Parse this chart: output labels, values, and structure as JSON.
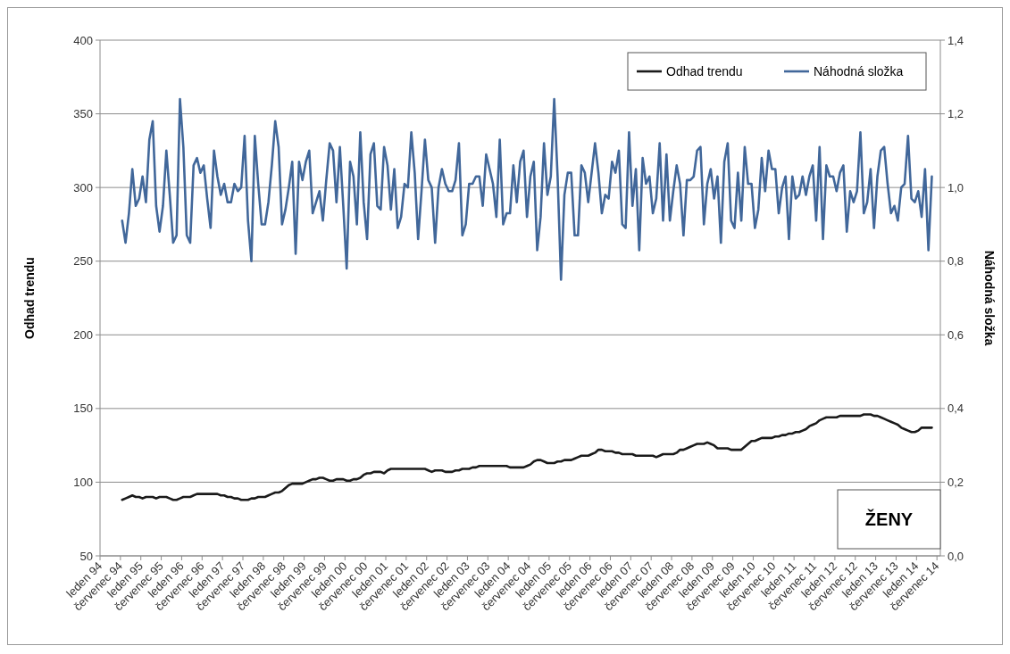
{
  "chart_data": {
    "type": "line",
    "xlabel": null,
    "ylabel": "Odhad trendu",
    "y2label": "Náhodná složka",
    "categories": [
      "leden 94",
      null,
      null,
      null,
      null,
      null,
      "červenec 94",
      null,
      null,
      null,
      null,
      null,
      "leden 95",
      null,
      null,
      null,
      null,
      null,
      "červenec 95",
      null,
      null,
      null,
      null,
      null,
      "leden 96",
      null,
      null,
      null,
      null,
      null,
      "červenec 96",
      null,
      null,
      null,
      null,
      null,
      "leden 97",
      null,
      null,
      null,
      null,
      null,
      "červenec 97",
      null,
      null,
      null,
      null,
      null,
      "leden 98",
      null,
      null,
      null,
      null,
      null,
      "červenec 98",
      null,
      null,
      null,
      null,
      null,
      "leden 99",
      null,
      null,
      null,
      null,
      null,
      "červenec 99",
      null,
      null,
      null,
      null,
      null,
      "leden 00",
      null,
      null,
      null,
      null,
      null,
      "červenec 00",
      null,
      null,
      null,
      null,
      null,
      "leden 01",
      null,
      null,
      null,
      null,
      null,
      "červenec 01",
      null,
      null,
      null,
      null,
      null,
      "leden 02",
      null,
      null,
      null,
      null,
      null,
      "červenec 02",
      null,
      null,
      null,
      null,
      null,
      "leden 03",
      null,
      null,
      null,
      null,
      null,
      "červenec 03",
      null,
      null,
      null,
      null,
      null,
      "leden 04",
      null,
      null,
      null,
      null,
      null,
      "červenec 04",
      null,
      null,
      null,
      null,
      null,
      "leden 05",
      null,
      null,
      null,
      null,
      null,
      "červenec 05",
      null,
      null,
      null,
      null,
      null,
      "leden 06",
      null,
      null,
      null,
      null,
      null,
      "červenec 06",
      null,
      null,
      null,
      null,
      null,
      "leden 07",
      null,
      null,
      null,
      null,
      null,
      "červenec 07",
      null,
      null,
      null,
      null,
      null,
      "leden 08",
      null,
      null,
      null,
      null,
      null,
      "červenec 08",
      null,
      null,
      null,
      null,
      null,
      "leden 09",
      null,
      null,
      null,
      null,
      null,
      "červenec 09",
      null,
      null,
      null,
      null,
      null,
      "leden 10",
      null,
      null,
      null,
      null,
      null,
      "červenec 10",
      null,
      null,
      null,
      null,
      null,
      "leden 11",
      null,
      null,
      null,
      null,
      null,
      "červenec 11",
      null,
      null,
      null,
      null,
      null,
      "leden 12",
      null,
      null,
      null,
      null,
      null,
      "červenec 12",
      null,
      null,
      null,
      null,
      null,
      "leden 13",
      null,
      null,
      null,
      null,
      null,
      "červenec 13",
      null,
      null,
      null,
      null,
      null,
      "leden 14",
      null,
      null,
      null,
      null,
      null,
      "červenec 14"
    ],
    "series": [
      {
        "name": "Odhad trendu",
        "color": "#1a1a1a",
        "values": [
          null,
          null,
          null,
          null,
          null,
          null,
          88,
          89,
          90,
          91,
          90,
          90,
          89,
          90,
          90,
          90,
          89,
          90,
          90,
          90,
          89,
          88,
          88,
          89,
          90,
          90,
          90,
          91,
          92,
          92,
          92,
          92,
          92,
          92,
          92,
          91,
          91,
          90,
          90,
          89,
          89,
          88,
          88,
          88,
          89,
          89,
          90,
          90,
          90,
          91,
          92,
          93,
          93,
          94,
          96,
          98,
          99,
          99,
          99,
          99,
          100,
          101,
          102,
          102,
          103,
          103,
          102,
          101,
          101,
          102,
          102,
          102,
          101,
          101,
          102,
          102,
          103,
          105,
          106,
          106,
          107,
          107,
          107,
          106,
          108,
          109,
          109,
          109,
          109,
          109,
          109,
          109,
          109,
          109,
          109,
          109,
          108,
          107,
          108,
          108,
          108,
          107,
          107,
          107,
          108,
          108,
          109,
          109,
          109,
          110,
          110,
          111,
          111,
          111,
          111,
          111,
          111,
          111,
          111,
          111,
          110,
          110,
          110,
          110,
          110,
          111,
          112,
          114,
          115,
          115,
          114,
          113,
          113,
          113,
          114,
          114,
          115,
          115,
          115,
          116,
          117,
          118,
          118,
          118,
          119,
          120,
          122,
          122,
          121,
          121,
          121,
          120,
          120,
          119,
          119,
          119,
          119,
          118,
          118,
          118,
          118,
          118,
          118,
          117,
          118,
          119,
          119,
          119,
          119,
          120,
          122,
          122,
          123,
          124,
          125,
          126,
          126,
          126,
          127,
          126,
          125,
          123,
          123,
          123,
          123,
          122,
          122,
          122,
          122,
          124,
          126,
          128,
          128,
          129,
          130,
          130,
          130,
          130,
          131,
          131,
          132,
          132,
          133,
          133,
          134,
          134,
          135,
          136,
          138,
          139,
          140,
          142,
          143,
          144,
          144,
          144,
          144,
          145,
          145,
          145,
          145,
          145,
          145,
          145,
          146,
          146,
          146,
          145,
          145,
          144,
          143,
          142,
          141,
          140,
          139,
          137,
          136,
          135,
          134,
          134,
          135,
          137,
          137,
          137,
          137,
          null,
          null
        ]
      },
      {
        "name": "Náhodná složka",
        "color": "#41679a",
        "axis": "y2",
        "values": [
          null,
          null,
          null,
          null,
          null,
          null,
          0.91,
          0.85,
          0.93,
          1.05,
          0.95,
          0.97,
          1.03,
          0.96,
          1.13,
          1.18,
          0.95,
          0.88,
          0.95,
          1.1,
          0.98,
          0.85,
          0.87,
          1.24,
          1.11,
          0.87,
          0.85,
          1.06,
          1.08,
          1.04,
          1.06,
          0.97,
          0.89,
          1.1,
          1.03,
          0.98,
          1.01,
          0.96,
          0.96,
          1.01,
          0.99,
          1.0,
          1.14,
          0.91,
          0.8,
          1.14,
          1.01,
          0.9,
          0.9,
          0.96,
          1.06,
          1.18,
          1.11,
          0.9,
          0.94,
          1.0,
          1.07,
          0.82,
          1.07,
          1.02,
          1.07,
          1.1,
          0.93,
          0.96,
          0.99,
          0.91,
          1.02,
          1.12,
          1.1,
          0.96,
          1.11,
          0.95,
          0.78,
          1.07,
          1.03,
          0.9,
          1.15,
          0.96,
          0.86,
          1.09,
          1.12,
          0.95,
          0.94,
          1.11,
          1.06,
          0.94,
          1.05,
          0.89,
          0.92,
          1.01,
          1.0,
          1.15,
          1.04,
          0.86,
          0.99,
          1.13,
          1.02,
          1.0,
          0.85,
          1.0,
          1.05,
          1.01,
          0.99,
          0.99,
          1.02,
          1.12,
          0.87,
          0.9,
          1.01,
          1.01,
          1.03,
          1.03,
          0.95,
          1.09,
          1.05,
          1.01,
          0.92,
          1.13,
          0.9,
          0.93,
          0.93,
          1.06,
          0.96,
          1.07,
          1.1,
          0.92,
          1.03,
          1.07,
          0.83,
          0.92,
          1.12,
          0.98,
          1.03,
          1.24,
          1.03,
          0.75,
          0.98,
          1.04,
          1.04,
          0.87,
          0.87,
          1.06,
          1.04,
          0.96,
          1.04,
          1.12,
          1.04,
          0.93,
          0.98,
          0.97,
          1.07,
          1.04,
          1.1,
          0.9,
          0.89,
          1.15,
          0.95,
          1.05,
          0.83,
          1.08,
          1.01,
          1.03,
          0.93,
          0.97,
          1.12,
          0.91,
          1.09,
          0.91,
          0.99,
          1.06,
          1.01,
          0.87,
          1.02,
          1.02,
          1.03,
          1.1,
          1.11,
          0.9,
          1.01,
          1.05,
          0.97,
          1.03,
          0.85,
          1.07,
          1.12,
          0.91,
          0.89,
          1.04,
          0.91,
          1.11,
          1.01,
          1.01,
          0.89,
          0.94,
          1.08,
          0.99,
          1.1,
          1.05,
          1.05,
          0.93,
          1.0,
          1.03,
          0.86,
          1.03,
          0.97,
          0.98,
          1.03,
          0.98,
          1.03,
          1.06,
          0.91,
          1.11,
          0.86,
          1.06,
          1.03,
          1.03,
          0.99,
          1.04,
          1.06,
          0.88,
          0.99,
          0.96,
          0.99,
          1.15,
          0.93,
          0.96,
          1.05,
          0.89,
          1.03,
          1.1,
          1.11,
          1.01,
          0.93,
          0.95,
          0.91,
          1.0,
          1.01,
          1.14,
          0.97,
          0.96,
          0.99,
          0.92,
          1.05,
          0.83,
          1.03,
          null,
          null
        ]
      }
    ],
    "ylim": [
      50,
      400
    ],
    "yticks": [
      50,
      100,
      150,
      200,
      250,
      300,
      350,
      400
    ],
    "y2lim": [
      0,
      1.4
    ],
    "y2ticks": [
      {
        "value": 0,
        "label": "0,0"
      },
      {
        "value": 0.2,
        "label": "0,2"
      },
      {
        "value": 0.4,
        "label": "0,4"
      },
      {
        "value": 0.6,
        "label": "0,6"
      },
      {
        "value": 0.8,
        "label": "0,8"
      },
      {
        "value": 1,
        "label": "1,0"
      },
      {
        "value": 1.2,
        "label": "1,2"
      },
      {
        "value": 1.4,
        "label": "1,4"
      }
    ],
    "grid": "y",
    "legend": "top right",
    "marker": "none",
    "line_style": "solid",
    "annotations": [
      "ŽENY"
    ]
  }
}
